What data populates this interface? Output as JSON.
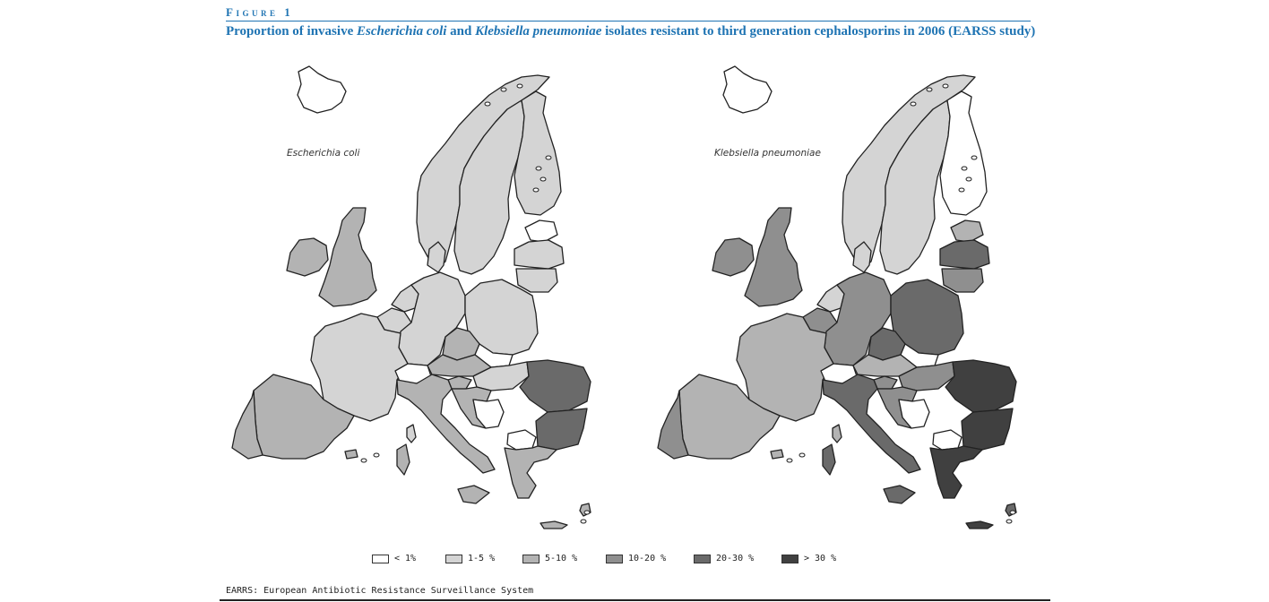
{
  "figure_label": "Figure 1",
  "title": {
    "prefix": "Proportion of invasive ",
    "organism1": "Escherichia coli",
    "middle": " and ",
    "organism2": "Klebsiella pneumoniae",
    "suffix": " isolates resistant to third generation cephalosporins in 2006 (EARSS study)"
  },
  "maps": [
    {
      "name": "Escherichia coli",
      "regions": {
        "iceland": "lt1",
        "norway": "r1_5",
        "sweden": "r1_5",
        "finland": "r1_5",
        "estonia": "lt1",
        "latvia": "r1_5",
        "lithuania": "r1_5",
        "ireland": "r5_10",
        "uk": "r5_10",
        "netherlands": "r1_5",
        "belgium": "r1_5",
        "denmark": "r1_5",
        "germany": "r1_5",
        "poland": "r1_5",
        "france": "r1_5",
        "switzerland": "nodata",
        "czech": "r5_10",
        "austria": "r5_10",
        "hungary": "r1_5",
        "slovakia": "nodata",
        "slovenia": "r5_10",
        "croatia": "r5_10",
        "bosnia": "nodata",
        "romania": "r20_30",
        "bulgaria": "r20_30",
        "greece": "r5_10",
        "macedonia": "nodata",
        "italy": "r5_10",
        "spain": "r5_10",
        "portugal": "r5_10",
        "corsica": "r1_5",
        "sardinia": "r5_10",
        "sicily": "r5_10",
        "balearic": "r5_10",
        "crete": "r5_10",
        "cyprus": "r5_10"
      }
    },
    {
      "name": "Klebsiella pneumoniae",
      "regions": {
        "iceland": "lt1",
        "norway": "r1_5",
        "sweden": "r1_5",
        "finland": "lt1",
        "estonia": "r5_10",
        "latvia": "r20_30",
        "lithuania": "r10_20",
        "ireland": "r10_20",
        "uk": "r10_20",
        "netherlands": "r1_5",
        "belgium": "r10_20",
        "denmark": "r1_5",
        "germany": "r10_20",
        "poland": "r20_30",
        "france": "r5_10",
        "switzerland": "nodata",
        "czech": "r20_30",
        "austria": "r5_10",
        "hungary": "r10_20",
        "slovakia": "nodata",
        "slovenia": "r10_20",
        "croatia": "r10_20",
        "bosnia": "nodata",
        "romania": "gt30",
        "bulgaria": "gt30",
        "greece": "gt30",
        "macedonia": "nodata",
        "italy": "r20_30",
        "spain": "r5_10",
        "portugal": "r10_20",
        "corsica": "r5_10",
        "sardinia": "r20_30",
        "sicily": "r20_30",
        "balearic": "r5_10",
        "crete": "gt30",
        "cyprus": "r20_30"
      }
    }
  ],
  "legend": [
    {
      "key": "lt1",
      "label": "< 1%",
      "color": "#ffffff"
    },
    {
      "key": "r1_5",
      "label": "1-5 %",
      "color": "#d4d4d4"
    },
    {
      "key": "r5_10",
      "label": "5-10 %",
      "color": "#b3b3b3"
    },
    {
      "key": "r10_20",
      "label": "10-20 %",
      "color": "#8f8f8f"
    },
    {
      "key": "r20_30",
      "label": "20-30 %",
      "color": "#6a6a6a"
    },
    {
      "key": "gt30",
      "label": "> 30 %",
      "color": "#404040"
    }
  ],
  "nodata_color": "#ffffff",
  "footnote": "EARRS: European Antibiotic Resistance Surveillance System"
}
